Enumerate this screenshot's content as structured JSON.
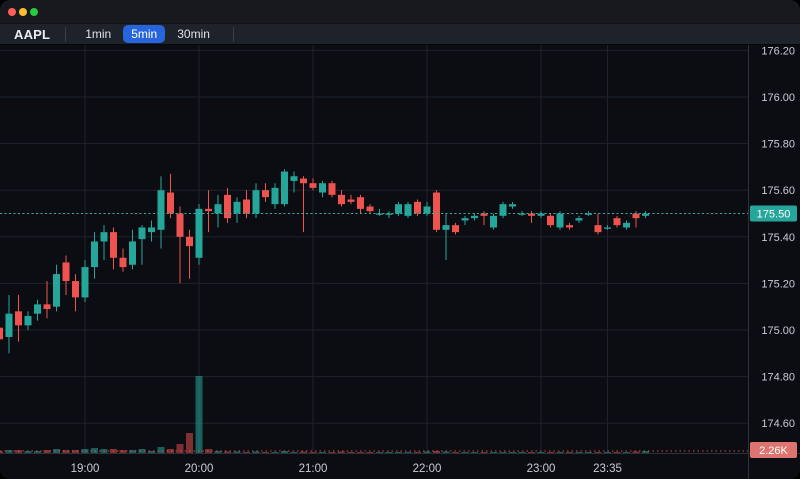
{
  "window": {
    "traffic_lights": [
      {
        "name": "close",
        "color": "#ff5f57"
      },
      {
        "name": "minimize",
        "color": "#febc2e"
      },
      {
        "name": "zoom",
        "color": "#28c840"
      }
    ]
  },
  "toolbar": {
    "symbol": "AAPL",
    "timeframes": [
      {
        "label": "1min",
        "active": false
      },
      {
        "label": "5min",
        "active": true
      },
      {
        "label": "30min",
        "active": false
      }
    ],
    "active_color": "#2865dd"
  },
  "chart_data": {
    "type": "candlestick",
    "symbol": "AAPL",
    "interval": "5min",
    "last_price": "175.50",
    "last_volume_label": "2.26K",
    "colors": {
      "up": "#26a69a",
      "down": "#ef5350",
      "volume_up": "rgba(38,166,154,0.55)",
      "volume_down": "rgba(239,83,80,0.5)",
      "grid": "#1e222d",
      "axis_text": "#c9ccd4",
      "pane_border": "#2c313c",
      "price_line": "#2fb5a8",
      "volume_line": "rgba(239,83,80,0.9)",
      "price_badge_bg": "#26a69a",
      "volume_badge_bg": "#dd7470",
      "background": "#0b0d12"
    },
    "price_axis": {
      "labels": [
        "176.20",
        "176.00",
        "175.80",
        "175.60",
        "175.40",
        "175.20",
        "175.00",
        "174.80",
        "174.60"
      ],
      "min": 174.47,
      "max": 176.22
    },
    "time_axis": {
      "ticks": [
        {
          "label": "19:00",
          "index": 9
        },
        {
          "label": "20:00",
          "index": 21
        },
        {
          "label": "21:00",
          "index": 33
        },
        {
          "label": "22:00",
          "index": 45
        },
        {
          "label": "23:00",
          "index": 57
        },
        {
          "label": "23:35",
          "index": 64
        }
      ]
    },
    "grid": true,
    "legend_position": "none",
    "candles": [
      {
        "t": "18:15",
        "o": 175.01,
        "h": 175.03,
        "l": 174.94,
        "c": 174.96,
        "v": 2.3
      },
      {
        "t": "18:20",
        "o": 174.97,
        "h": 175.15,
        "l": 174.9,
        "c": 175.07,
        "v": 3.4
      },
      {
        "t": "18:25",
        "o": 175.08,
        "h": 175.15,
        "l": 174.95,
        "c": 175.02,
        "v": 3.4
      },
      {
        "t": "18:30",
        "o": 175.02,
        "h": 175.08,
        "l": 175.0,
        "c": 175.06,
        "v": 2.3
      },
      {
        "t": "18:35",
        "o": 175.07,
        "h": 175.13,
        "l": 175.04,
        "c": 175.11,
        "v": 2.3
      },
      {
        "t": "18:40",
        "o": 175.11,
        "h": 175.21,
        "l": 175.05,
        "c": 175.09,
        "v": 3.4
      },
      {
        "t": "18:45",
        "o": 175.1,
        "h": 175.28,
        "l": 175.08,
        "c": 175.24,
        "v": 4.5
      },
      {
        "t": "18:50",
        "o": 175.29,
        "h": 175.32,
        "l": 175.15,
        "c": 175.21,
        "v": 3.4
      },
      {
        "t": "18:55",
        "o": 175.21,
        "h": 175.24,
        "l": 175.08,
        "c": 175.14,
        "v": 3.4
      },
      {
        "t": "19:00",
        "o": 175.14,
        "h": 175.3,
        "l": 175.12,
        "c": 175.27,
        "v": 4.5
      },
      {
        "t": "19:05",
        "o": 175.27,
        "h": 175.42,
        "l": 175.22,
        "c": 175.38,
        "v": 5.6
      },
      {
        "t": "19:10",
        "o": 175.38,
        "h": 175.45,
        "l": 175.3,
        "c": 175.42,
        "v": 4.5
      },
      {
        "t": "19:15",
        "o": 175.42,
        "h": 175.44,
        "l": 175.26,
        "c": 175.31,
        "v": 4.5
      },
      {
        "t": "19:20",
        "o": 175.31,
        "h": 175.35,
        "l": 175.25,
        "c": 175.27,
        "v": 3.4
      },
      {
        "t": "19:25",
        "o": 175.28,
        "h": 175.43,
        "l": 175.26,
        "c": 175.38,
        "v": 3.4
      },
      {
        "t": "19:30",
        "o": 175.39,
        "h": 175.45,
        "l": 175.28,
        "c": 175.44,
        "v": 4.5
      },
      {
        "t": "19:35",
        "o": 175.42,
        "h": 175.47,
        "l": 175.38,
        "c": 175.44,
        "v": 2.3
      },
      {
        "t": "19:40",
        "o": 175.43,
        "h": 175.66,
        "l": 175.35,
        "c": 175.6,
        "v": 6.8
      },
      {
        "t": "19:45",
        "o": 175.59,
        "h": 175.67,
        "l": 175.48,
        "c": 175.5,
        "v": 4.5
      },
      {
        "t": "19:50",
        "o": 175.5,
        "h": 175.53,
        "l": 175.2,
        "c": 175.4,
        "v": 10.2
      },
      {
        "t": "19:55",
        "o": 175.4,
        "h": 175.43,
        "l": 175.22,
        "c": 175.36,
        "v": 22.6
      },
      {
        "t": "20:00",
        "o": 175.31,
        "h": 175.54,
        "l": 175.28,
        "c": 175.52,
        "v": 87.0
      },
      {
        "t": "20:05",
        "o": 175.52,
        "h": 175.6,
        "l": 175.42,
        "c": 175.51,
        "v": 4.5
      },
      {
        "t": "20:10",
        "o": 175.5,
        "h": 175.58,
        "l": 175.44,
        "c": 175.54,
        "v": 2.3
      },
      {
        "t": "20:15",
        "o": 175.58,
        "h": 175.61,
        "l": 175.46,
        "c": 175.48,
        "v": 1.7
      },
      {
        "t": "20:20",
        "o": 175.5,
        "h": 175.57,
        "l": 175.46,
        "c": 175.55,
        "v": 1.7
      },
      {
        "t": "20:25",
        "o": 175.56,
        "h": 175.6,
        "l": 175.48,
        "c": 175.5,
        "v": 1.1
      },
      {
        "t": "20:30",
        "o": 175.5,
        "h": 175.63,
        "l": 175.48,
        "c": 175.6,
        "v": 1.7
      },
      {
        "t": "20:35",
        "o": 175.6,
        "h": 175.63,
        "l": 175.55,
        "c": 175.57,
        "v": 1.1
      },
      {
        "t": "20:40",
        "o": 175.54,
        "h": 175.63,
        "l": 175.52,
        "c": 175.61,
        "v": 1.1
      },
      {
        "t": "20:45",
        "o": 175.54,
        "h": 175.69,
        "l": 175.53,
        "c": 175.68,
        "v": 2.3
      },
      {
        "t": "20:50",
        "o": 175.64,
        "h": 175.68,
        "l": 175.59,
        "c": 175.66,
        "v": 1.1
      },
      {
        "t": "20:55",
        "o": 175.65,
        "h": 175.66,
        "l": 175.42,
        "c": 175.63,
        "v": 1.7
      },
      {
        "t": "21:00",
        "o": 175.63,
        "h": 175.65,
        "l": 175.6,
        "c": 175.61,
        "v": 1.1
      },
      {
        "t": "21:05",
        "o": 175.59,
        "h": 175.64,
        "l": 175.57,
        "c": 175.63,
        "v": 1.1
      },
      {
        "t": "21:10",
        "o": 175.63,
        "h": 175.64,
        "l": 175.57,
        "c": 175.58,
        "v": 1.1
      },
      {
        "t": "21:15",
        "o": 175.58,
        "h": 175.6,
        "l": 175.53,
        "c": 175.54,
        "v": 1.7
      },
      {
        "t": "21:20",
        "o": 175.56,
        "h": 175.58,
        "l": 175.54,
        "c": 175.55,
        "v": 1.1
      },
      {
        "t": "21:25",
        "o": 175.57,
        "h": 175.58,
        "l": 175.5,
        "c": 175.52,
        "v": 1.1
      },
      {
        "t": "21:30",
        "o": 175.53,
        "h": 175.54,
        "l": 175.5,
        "c": 175.51,
        "v": 1.1
      },
      {
        "t": "21:35",
        "o": 175.5,
        "h": 175.52,
        "l": 175.49,
        "c": 175.5,
        "v": 0.6
      },
      {
        "t": "21:40",
        "o": 175.5,
        "h": 175.51,
        "l": 175.48,
        "c": 175.5,
        "v": 0.6
      },
      {
        "t": "21:45",
        "o": 175.5,
        "h": 175.55,
        "l": 175.49,
        "c": 175.54,
        "v": 1.1
      },
      {
        "t": "21:50",
        "o": 175.49,
        "h": 175.55,
        "l": 175.48,
        "c": 175.54,
        "v": 1.1
      },
      {
        "t": "21:55",
        "o": 175.55,
        "h": 175.56,
        "l": 175.49,
        "c": 175.5,
        "v": 1.1
      },
      {
        "t": "22:00",
        "o": 175.5,
        "h": 175.55,
        "l": 175.49,
        "c": 175.53,
        "v": 1.7
      },
      {
        "t": "22:05",
        "o": 175.59,
        "h": 175.6,
        "l": 175.42,
        "c": 175.43,
        "v": 2.3
      },
      {
        "t": "22:10",
        "o": 175.43,
        "h": 175.5,
        "l": 175.3,
        "c": 175.45,
        "v": 1.7
      },
      {
        "t": "22:15",
        "o": 175.45,
        "h": 175.46,
        "l": 175.41,
        "c": 175.42,
        "v": 1.1
      },
      {
        "t": "22:20",
        "o": 175.47,
        "h": 175.49,
        "l": 175.45,
        "c": 175.48,
        "v": 0.6
      },
      {
        "t": "22:25",
        "o": 175.48,
        "h": 175.5,
        "l": 175.47,
        "c": 175.49,
        "v": 0.6
      },
      {
        "t": "22:30",
        "o": 175.5,
        "h": 175.51,
        "l": 175.45,
        "c": 175.49,
        "v": 1.1
      },
      {
        "t": "22:35",
        "o": 175.44,
        "h": 175.5,
        "l": 175.43,
        "c": 175.49,
        "v": 1.1
      },
      {
        "t": "22:40",
        "o": 175.49,
        "h": 175.55,
        "l": 175.48,
        "c": 175.54,
        "v": 1.1
      },
      {
        "t": "22:45",
        "o": 175.53,
        "h": 175.55,
        "l": 175.52,
        "c": 175.54,
        "v": 0.6
      },
      {
        "t": "22:50",
        "o": 175.5,
        "h": 175.51,
        "l": 175.49,
        "c": 175.5,
        "v": 0.6
      },
      {
        "t": "22:55",
        "o": 175.5,
        "h": 175.51,
        "l": 175.46,
        "c": 175.49,
        "v": 0.6
      },
      {
        "t": "23:00",
        "o": 175.49,
        "h": 175.51,
        "l": 175.48,
        "c": 175.5,
        "v": 0.6
      },
      {
        "t": "23:05",
        "o": 175.49,
        "h": 175.5,
        "l": 175.44,
        "c": 175.45,
        "v": 1.1
      },
      {
        "t": "23:10",
        "o": 175.44,
        "h": 175.51,
        "l": 175.43,
        "c": 175.5,
        "v": 1.1
      },
      {
        "t": "23:15",
        "o": 175.45,
        "h": 175.46,
        "l": 175.43,
        "c": 175.44,
        "v": 0.6
      },
      {
        "t": "23:20",
        "o": 175.47,
        "h": 175.49,
        "l": 175.46,
        "c": 175.48,
        "v": 0.6
      },
      {
        "t": "23:25",
        "o": 175.5,
        "h": 175.51,
        "l": 175.49,
        "c": 175.5,
        "v": 0.6
      },
      {
        "t": "23:30",
        "o": 175.45,
        "h": 175.5,
        "l": 175.41,
        "c": 175.42,
        "v": 1.1
      },
      {
        "t": "23:35",
        "o": 175.44,
        "h": 175.45,
        "l": 175.43,
        "c": 175.44,
        "v": 0.6
      },
      {
        "t": "23:40",
        "o": 175.48,
        "h": 175.49,
        "l": 175.44,
        "c": 175.45,
        "v": 1.1
      },
      {
        "t": "23:45",
        "o": 175.44,
        "h": 175.47,
        "l": 175.43,
        "c": 175.46,
        "v": 0.6
      },
      {
        "t": "23:50",
        "o": 175.5,
        "h": 175.51,
        "l": 175.44,
        "c": 175.48,
        "v": 1.7
      },
      {
        "t": "23:55",
        "o": 175.49,
        "h": 175.51,
        "l": 175.48,
        "c": 175.5,
        "v": 2.26
      }
    ]
  }
}
